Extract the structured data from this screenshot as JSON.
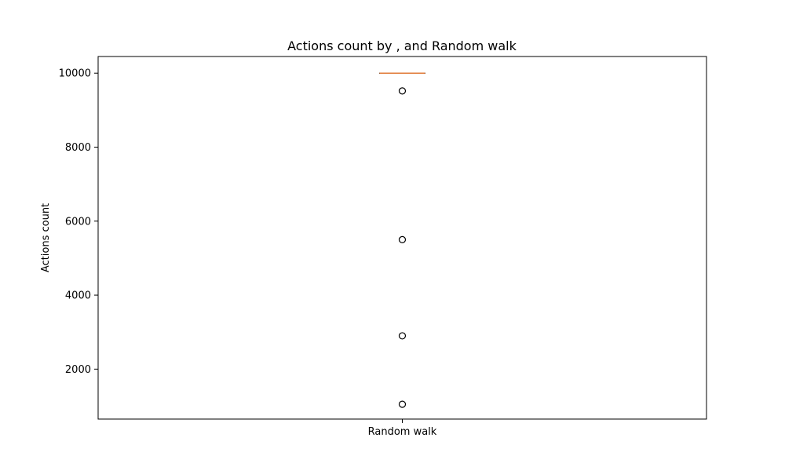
{
  "chart_data": {
    "type": "box",
    "title": "Actions count by , and Random walk",
    "xlabel": "",
    "ylabel": "Actions count",
    "categories": [
      "Random walk"
    ],
    "ylim": [
      650,
      10450
    ],
    "yticks": [
      2000,
      4000,
      6000,
      8000,
      10000
    ],
    "ytick_labels": [
      "2000",
      "4000",
      "6000",
      "8000",
      "10000"
    ],
    "grid": false,
    "series": [
      {
        "category": "Random walk",
        "whisker_low": 10000,
        "q1": 10000,
        "median": 10000,
        "q3": 10000,
        "whisker_high": 10000,
        "outliers": [
          9520,
          5500,
          2900,
          1050
        ]
      }
    ],
    "colors": {
      "box": "#000000",
      "median": "#e07b39",
      "outlier_edge": "#000000"
    }
  }
}
